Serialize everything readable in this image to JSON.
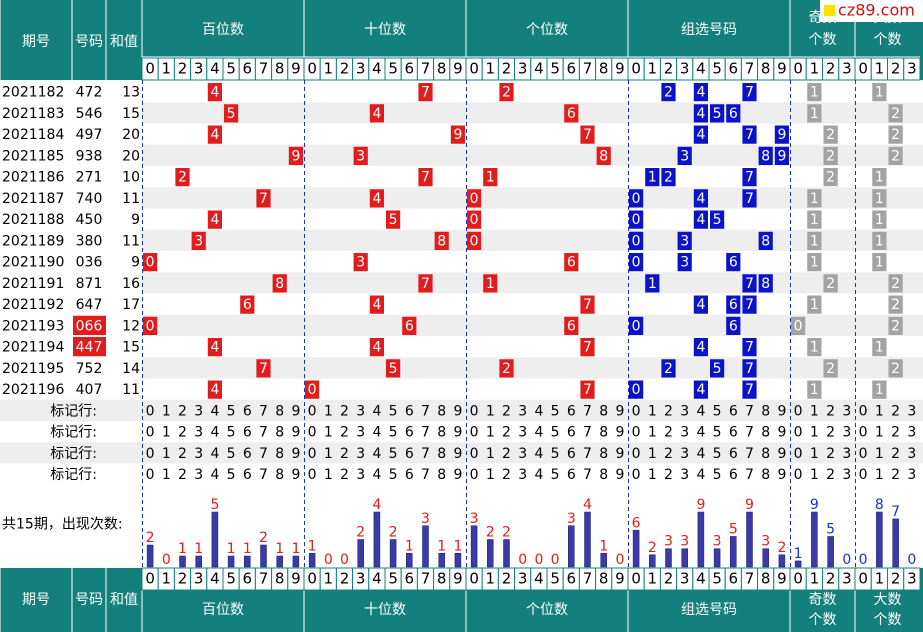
{
  "header": {
    "period": "期号",
    "number": "号码",
    "sum": "和值",
    "sections": [
      "百位数",
      "十位数",
      "个位数",
      "组选号码"
    ],
    "odd": [
      "奇数",
      "个数"
    ],
    "big": [
      "大数",
      "个数"
    ]
  },
  "logo": "cz89.com",
  "digits": [
    0,
    1,
    2,
    3,
    4,
    5,
    6,
    7,
    8,
    9
  ],
  "small_digits": [
    0,
    1,
    2,
    3
  ],
  "colors": {
    "header": "#13807e",
    "position": "#e21c1c",
    "group": "#0c12c8",
    "parity": "#a3a3a3",
    "bar": "#3a3aa8",
    "count": "#e21c1c",
    "count_small": "#1c2fd0",
    "highlight": "#e21c1c",
    "stripe": "#eeeeee"
  },
  "rows": [
    {
      "period": "2021182",
      "number": "472",
      "sum": 13,
      "digits": [
        4,
        7,
        2
      ],
      "group": [
        2,
        4,
        7
      ],
      "odd": 1,
      "big": 1
    },
    {
      "period": "2021183",
      "number": "546",
      "sum": 15,
      "digits": [
        5,
        4,
        6
      ],
      "group": [
        4,
        5,
        6
      ],
      "odd": 1,
      "big": 2
    },
    {
      "period": "2021184",
      "number": "497",
      "sum": 20,
      "digits": [
        4,
        9,
        7
      ],
      "group": [
        4,
        7,
        9
      ],
      "odd": 2,
      "big": 2
    },
    {
      "period": "2021185",
      "number": "938",
      "sum": 20,
      "digits": [
        9,
        3,
        8
      ],
      "group": [
        3,
        8,
        9
      ],
      "odd": 2,
      "big": 2
    },
    {
      "period": "2021186",
      "number": "271",
      "sum": 10,
      "digits": [
        2,
        7,
        1
      ],
      "group": [
        1,
        2,
        7
      ],
      "odd": 2,
      "big": 1
    },
    {
      "period": "2021187",
      "number": "740",
      "sum": 11,
      "digits": [
        7,
        4,
        0
      ],
      "group": [
        0,
        4,
        7
      ],
      "odd": 1,
      "big": 1
    },
    {
      "period": "2021188",
      "number": "450",
      "sum": 9,
      "digits": [
        4,
        5,
        0
      ],
      "group": [
        0,
        4,
        5
      ],
      "odd": 1,
      "big": 1
    },
    {
      "period": "2021189",
      "number": "380",
      "sum": 11,
      "digits": [
        3,
        8,
        0
      ],
      "group": [
        0,
        3,
        8
      ],
      "odd": 1,
      "big": 1
    },
    {
      "period": "2021190",
      "number": "036",
      "sum": 9,
      "digits": [
        0,
        3,
        6
      ],
      "group": [
        0,
        3,
        6
      ],
      "odd": 1,
      "big": 1
    },
    {
      "period": "2021191",
      "number": "871",
      "sum": 16,
      "digits": [
        8,
        7,
        1
      ],
      "group": [
        1,
        7,
        8
      ],
      "odd": 2,
      "big": 2
    },
    {
      "period": "2021192",
      "number": "647",
      "sum": 17,
      "digits": [
        6,
        4,
        7
      ],
      "group": [
        4,
        6,
        7
      ],
      "odd": 1,
      "big": 2
    },
    {
      "period": "2021193",
      "number": "066",
      "sum": 12,
      "digits": [
        0,
        6,
        6
      ],
      "group": [
        0,
        6
      ],
      "odd": 0,
      "big": 2,
      "highlight": true
    },
    {
      "period": "2021194",
      "number": "447",
      "sum": 15,
      "digits": [
        4,
        4,
        7
      ],
      "group": [
        4,
        7
      ],
      "odd": 1,
      "big": 1,
      "highlight": true
    },
    {
      "period": "2021195",
      "number": "752",
      "sum": 14,
      "digits": [
        7,
        5,
        2
      ],
      "group": [
        2,
        5,
        7
      ],
      "odd": 2,
      "big": 2
    },
    {
      "period": "2021196",
      "number": "407",
      "sum": 11,
      "digits": [
        4,
        0,
        7
      ],
      "group": [
        0,
        4,
        7
      ],
      "odd": 1,
      "big": 1
    }
  ],
  "mark_labels": [
    "标记行:",
    "标记行:",
    "标记行:",
    "标记行:"
  ],
  "count_label": "共15期，出现次数:",
  "counts": {
    "hundreds": [
      2,
      0,
      1,
      1,
      5,
      1,
      1,
      2,
      1,
      1
    ],
    "tens": [
      1,
      0,
      0,
      2,
      4,
      2,
      1,
      3,
      1,
      1
    ],
    "ones": [
      3,
      2,
      2,
      0,
      0,
      0,
      3,
      4,
      1,
      0
    ],
    "group": [
      6,
      2,
      3,
      3,
      9,
      3,
      5,
      9,
      3,
      2
    ],
    "odd": [
      1,
      9,
      5,
      0
    ],
    "big": [
      0,
      8,
      7,
      0
    ]
  }
}
